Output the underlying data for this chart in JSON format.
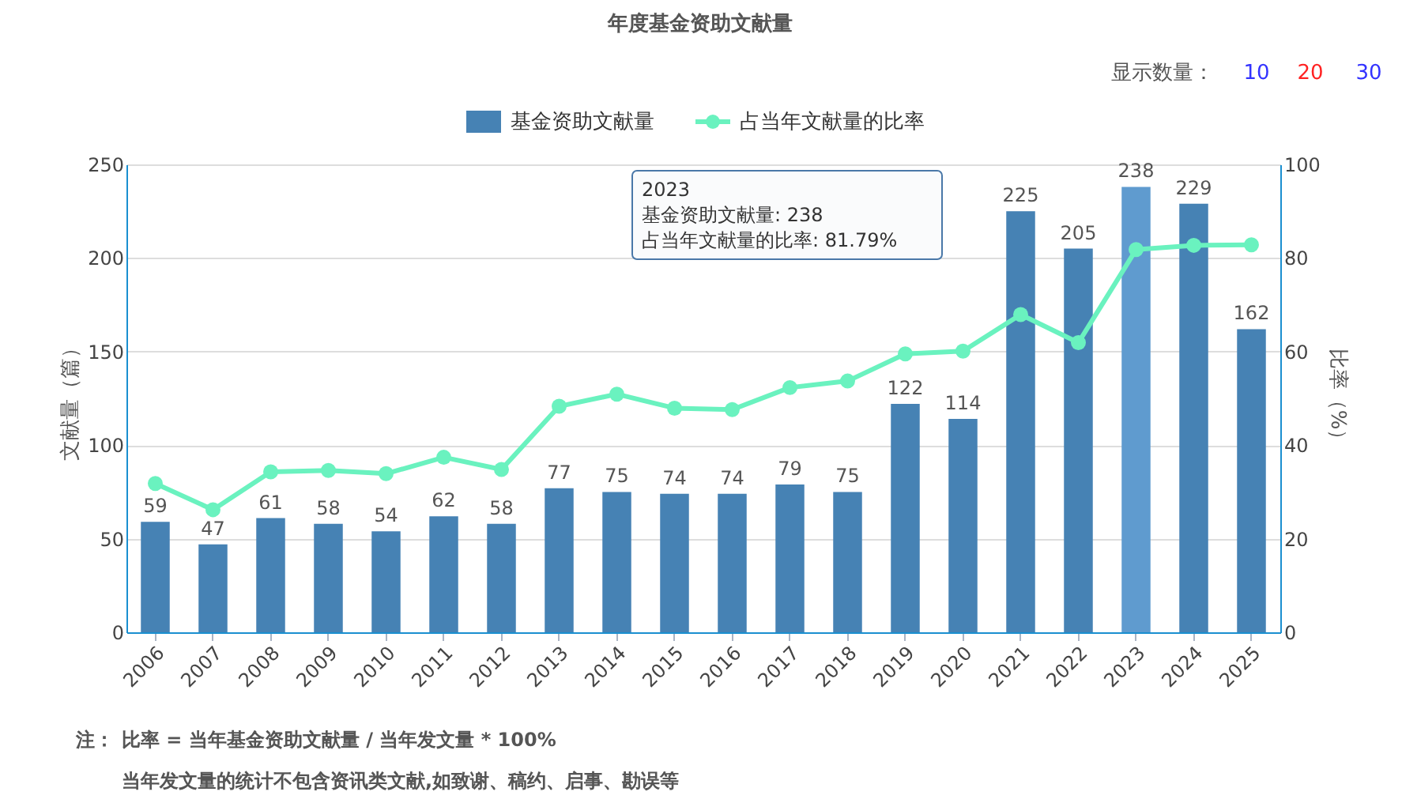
{
  "chart_data": {
    "type": "bar",
    "title": "年度基金资助文献量",
    "categories": [
      "2006",
      "2007",
      "2008",
      "2009",
      "2010",
      "2011",
      "2012",
      "2013",
      "2014",
      "2015",
      "2016",
      "2017",
      "2018",
      "2019",
      "2020",
      "2021",
      "2022",
      "2023",
      "2024",
      "2025"
    ],
    "series": [
      {
        "name": "基金资助文献量",
        "value_labels": [
          "59",
          "47",
          "61",
          "58",
          "54",
          "62",
          "58",
          "77",
          "75",
          "74",
          "74",
          "79",
          "75",
          "122",
          "114",
          "225",
          "205",
          "238",
          "229",
          "162"
        ],
        "color": "#4682b4",
        "colors": [
          "#4682b4",
          "#4682b4",
          "#4682b4",
          "#4682b4",
          "#4682b4",
          "#4682b4",
          "#4682b4",
          "#4682b4",
          "#4682b4",
          "#4682b4",
          "#4682b4",
          "#4682b4",
          "#4682b4",
          "#4682b4",
          "#4682b4",
          "#4682b4",
          "#4682b4",
          "#5f9bcf",
          "#4682b4",
          "#4682b4"
        ],
        "values": [
          59,
          47,
          61,
          58,
          54,
          62,
          58,
          77,
          75,
          74,
          74,
          79,
          75,
          122,
          114,
          225,
          205,
          238,
          229,
          162
        ]
      },
      {
        "name": "占当年文献量的比率",
        "type": "line",
        "axis": "y2",
        "color": "#6af2bf",
        "values": [
          31.8,
          26.2,
          34.3,
          34.6,
          33.9,
          37.4,
          34.8,
          48.3,
          50.9,
          47.9,
          47.6,
          52.3,
          53.7,
          59.5,
          60.1,
          67.9,
          61.9,
          81.79,
          82.7,
          82.8
        ]
      }
    ],
    "ylabel": "文献量（篇）",
    "y2label": "比率（%）",
    "ylim": [
      0,
      250
    ],
    "yticks": [
      0,
      50,
      100,
      150,
      200,
      250
    ],
    "y2lim": [
      0,
      100
    ],
    "y2ticks": [
      0,
      20,
      40,
      60,
      80,
      100
    ],
    "grid": "y",
    "legend": "top",
    "marker": "circle",
    "annotations": [
      "显示数量：",
      "10",
      "20",
      "30",
      "2023",
      "基金资助文献量: 238",
      "占当年文献量的比率: 81.79%",
      "注：",
      "比率 = 当年基金资助文献量 / 当年发文量 * 100%",
      "当年发文量的统计不包含资讯类文献,如致谢、稿约、启事、勘误等"
    ]
  }
}
